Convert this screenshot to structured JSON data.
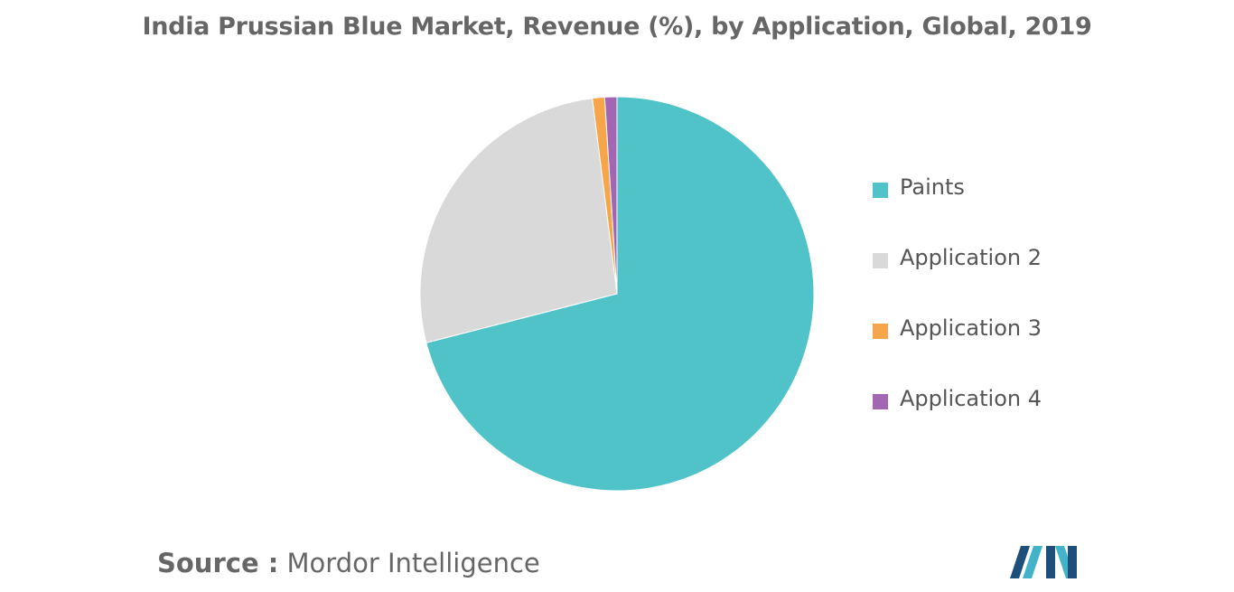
{
  "chart_data": {
    "type": "pie",
    "title": "India Prussian Blue Market, Revenue (%), by Application, Global, 2019",
    "categories": [
      "Paints",
      "Application 2",
      "Application 3",
      "Application 4"
    ],
    "values": [
      71,
      27,
      1,
      1
    ],
    "colors": [
      "#4fc3c8",
      "#d9d9d9",
      "#f7a54a",
      "#a366b3"
    ],
    "legend_position": "right"
  },
  "source": {
    "prefix": "Source :",
    "value": "Mordor Intelligence"
  },
  "logo": {
    "icon": "mordor-intelligence-logo-icon",
    "colors": [
      "#1d4f7a",
      "#43b3c9"
    ]
  }
}
